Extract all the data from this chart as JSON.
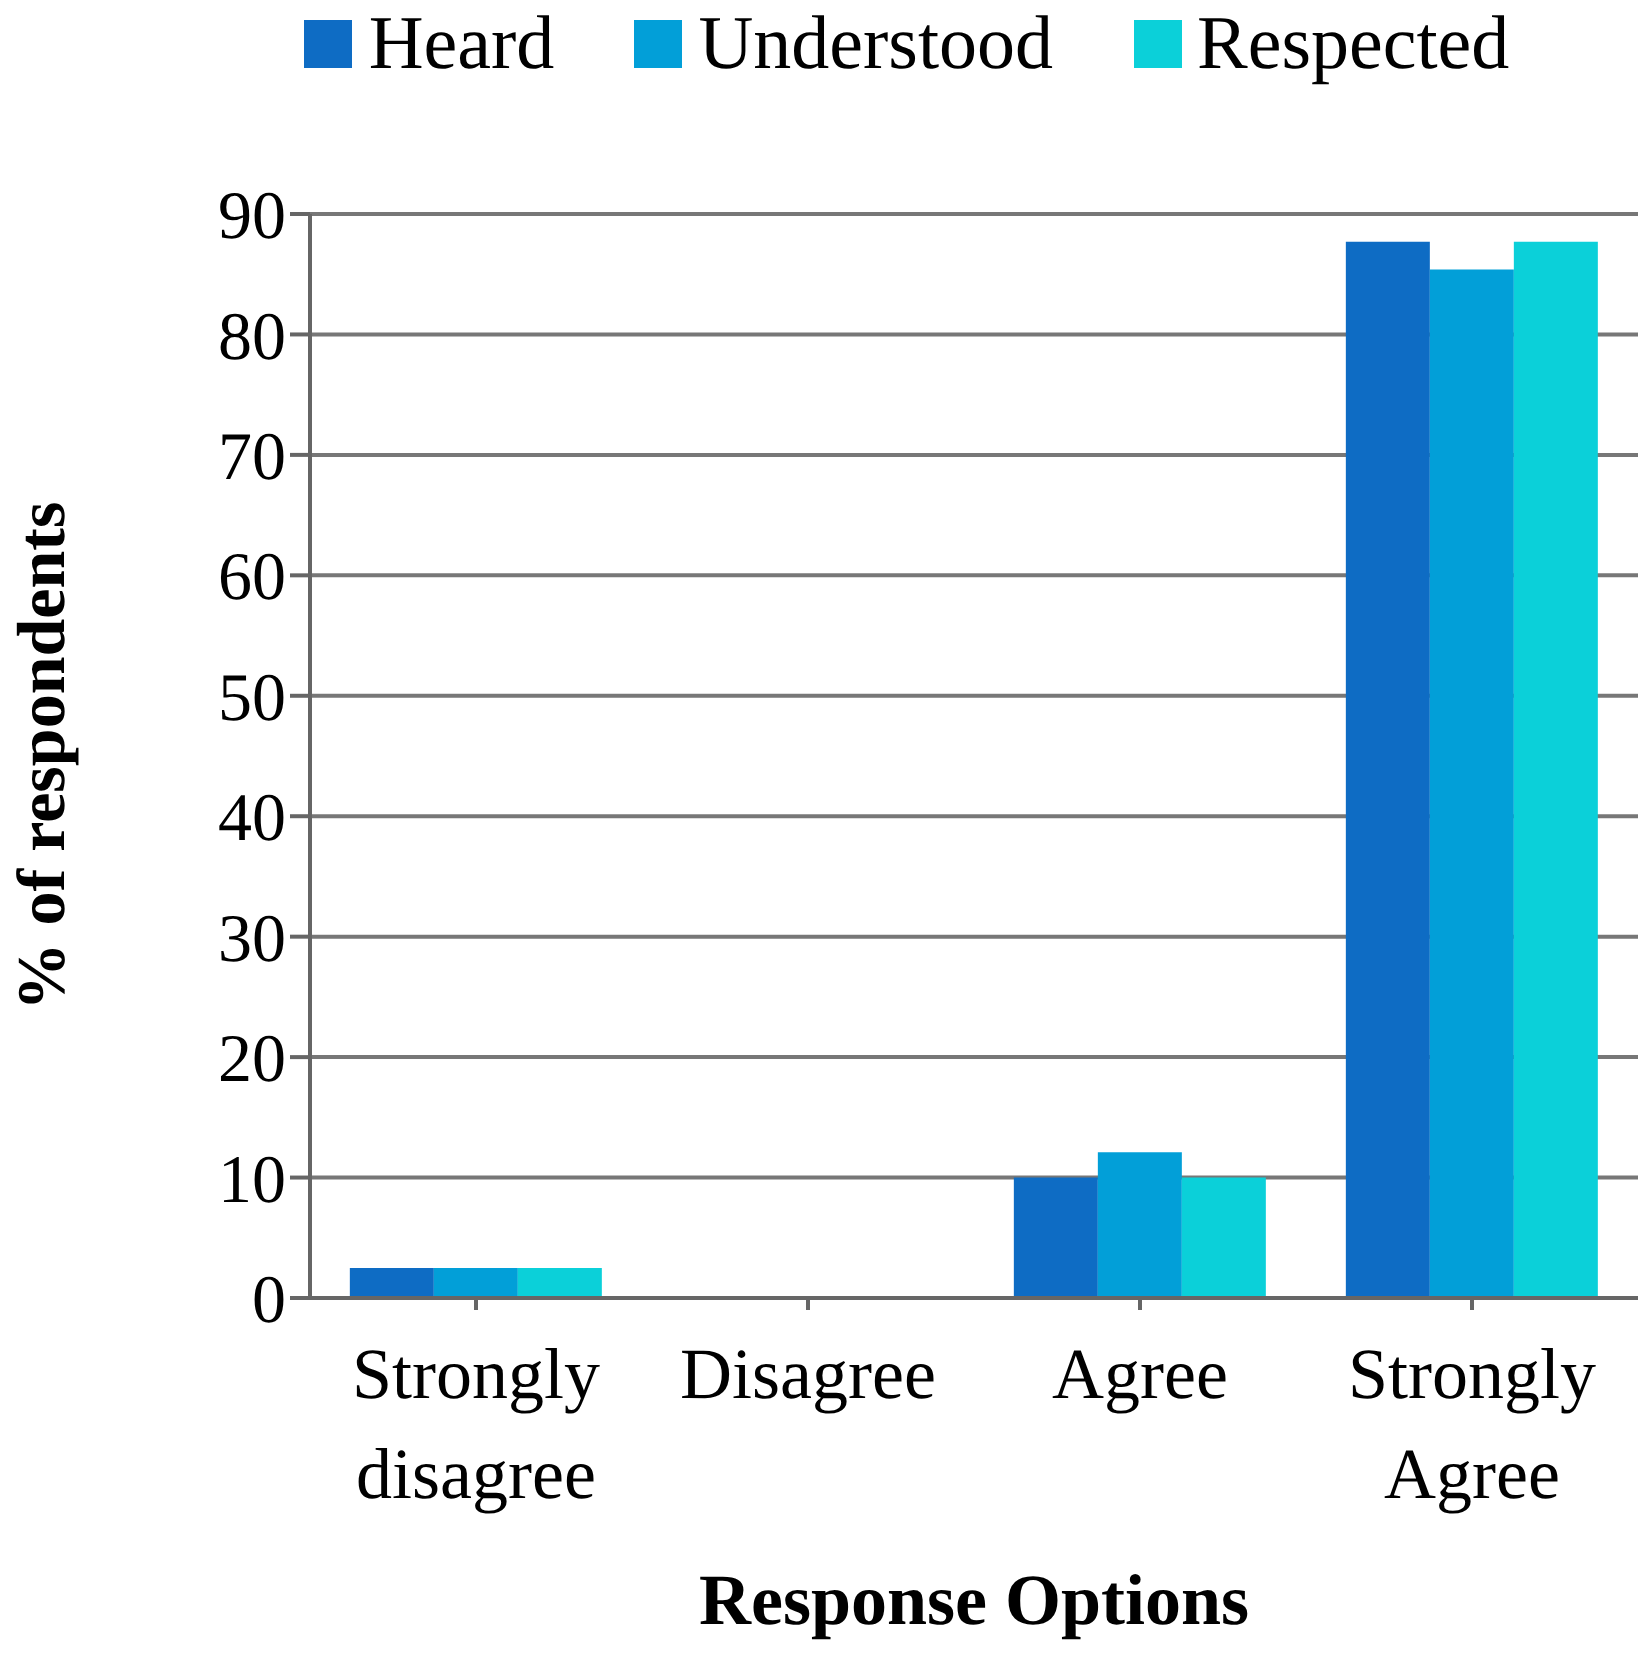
{
  "chart_data": {
    "type": "bar",
    "xlabel": "Response Options",
    "ylabel": "% of respondents",
    "categories": [
      "Strongly disagree",
      "Disagree",
      "Agree",
      "Strongly Agree"
    ],
    "series": [
      {
        "name": "Heard",
        "color": "#0e6cc4",
        "values": [
          2.5,
          0,
          10,
          87.7
        ]
      },
      {
        "name": "Understood",
        "color": "#029fd8",
        "values": [
          2.5,
          0,
          12.1,
          85.4
        ]
      },
      {
        "name": "Respected",
        "color": "#0bd0d9",
        "values": [
          2.5,
          0,
          10,
          87.7
        ]
      }
    ],
    "ylim": [
      0,
      90
    ],
    "yticks": [
      0,
      10,
      20,
      30,
      40,
      50,
      60,
      70,
      80,
      90
    ],
    "grid": "y",
    "legend": "top"
  }
}
